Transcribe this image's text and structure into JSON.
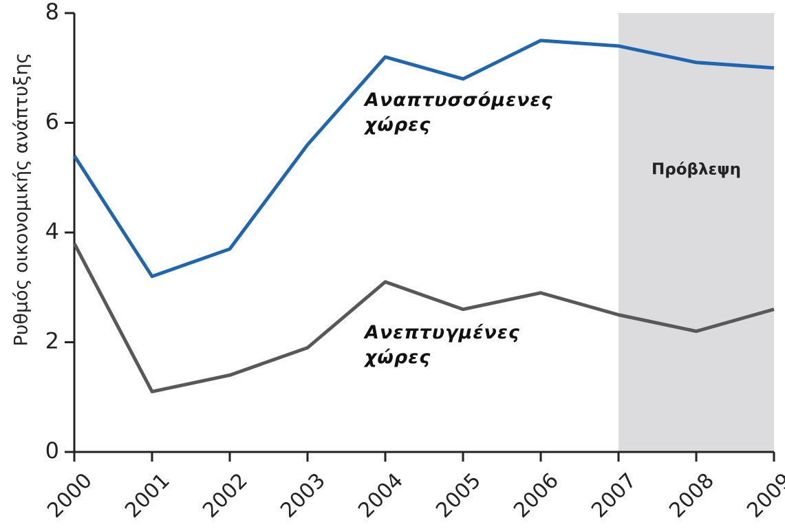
{
  "chart_data": {
    "type": "line",
    "y_label": "Ρυθμός οικονομικής ανάπτυξης",
    "x": [
      2000,
      2001,
      2002,
      2003,
      2004,
      2005,
      2006,
      2007,
      2008,
      2009
    ],
    "xlim": [
      2000,
      2009
    ],
    "xticks": [
      2000,
      2001,
      2002,
      2003,
      2004,
      2005,
      2006,
      2007,
      2008,
      2009
    ],
    "ylim": [
      0,
      8
    ],
    "yticks": [
      0,
      2,
      4,
      6,
      8
    ],
    "forecast": {
      "label": "Πρόβλεψη",
      "from": 2007,
      "to": 2009,
      "color": "#dcdcde"
    },
    "series": [
      {
        "name": "Αναπτυσσόμενες χώρες",
        "color": "#1f66b1",
        "values": [
          5.4,
          3.2,
          3.7,
          5.6,
          7.2,
          6.8,
          7.5,
          7.4,
          7.1,
          7.0
        ]
      },
      {
        "name": "Ανεπτυγμένες χώρες",
        "color": "#58585a",
        "values": [
          3.8,
          1.1,
          1.4,
          1.9,
          3.1,
          2.6,
          2.9,
          2.5,
          2.2,
          2.6
        ]
      }
    ]
  }
}
